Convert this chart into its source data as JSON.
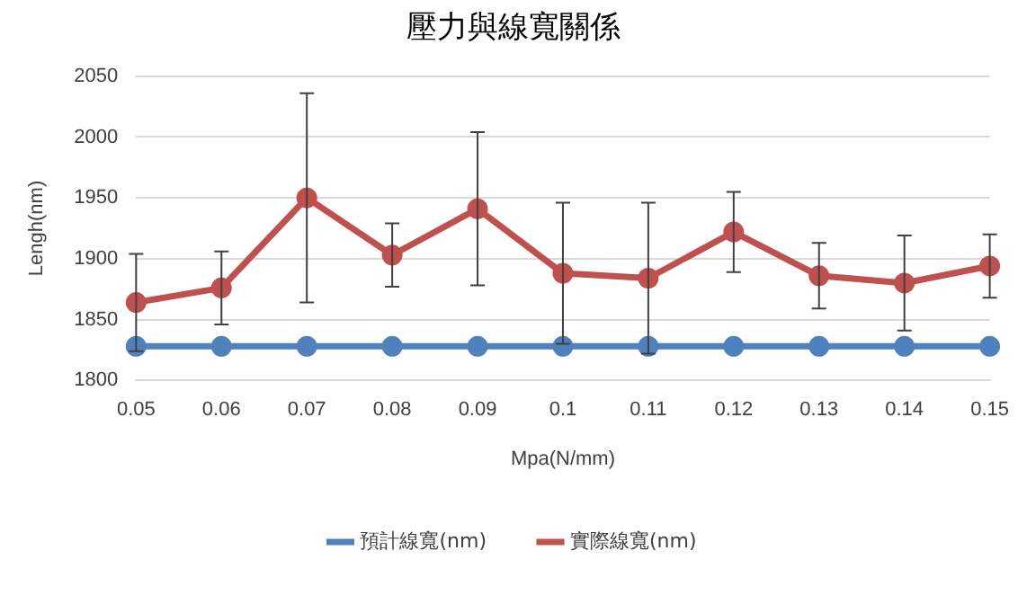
{
  "chart_data": {
    "type": "line",
    "title": "壓力與線寬關係",
    "xlabel": "Mpa(N/mm)",
    "ylabel": "Lengh(nm)",
    "categories": [
      "0.05",
      "0.06",
      "0.07",
      "0.08",
      "0.09",
      "0.1",
      "0.11",
      "0.12",
      "0.13",
      "0.14",
      "0.15"
    ],
    "series": [
      {
        "name": "預計線寬(nm)",
        "color": "#4f81bd",
        "values": [
          1828,
          1828,
          1828,
          1828,
          1828,
          1828,
          1828,
          1828,
          1828,
          1828,
          1828
        ]
      },
      {
        "name": "實際線寬(nm)",
        "color": "#c0504d",
        "values": [
          1864,
          1876,
          1950,
          1903,
          1941,
          1888,
          1884,
          1922,
          1886,
          1880,
          1894
        ],
        "errors": [
          40,
          30,
          86,
          26,
          63,
          58,
          62,
          33,
          27,
          39,
          26
        ]
      }
    ],
    "ylim": [
      1800,
      2050
    ],
    "yticks": [
      1800,
      1850,
      1900,
      1950,
      2000,
      2050
    ],
    "grid": "y",
    "legend": "bottom",
    "marker": "circle",
    "line_style": "solid"
  }
}
